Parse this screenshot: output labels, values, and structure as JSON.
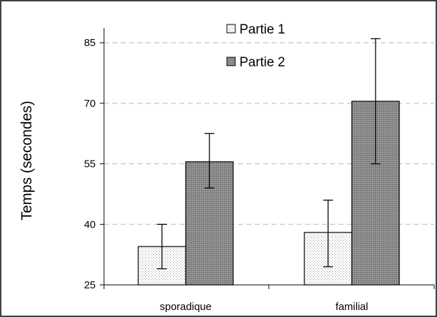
{
  "chart_data": {
    "type": "bar",
    "categories": [
      "sporadique",
      "familial"
    ],
    "series": [
      {
        "name": "Partie 1",
        "values": [
          34.5,
          38
        ],
        "err_low": [
          29,
          29.5
        ],
        "err_high": [
          40,
          46
        ],
        "pattern": "light-dotted"
      },
      {
        "name": "Partie 2",
        "values": [
          55.5,
          70.5
        ],
        "err_low": [
          49,
          55
        ],
        "err_high": [
          62.5,
          86
        ],
        "pattern": "dark-dotted"
      }
    ],
    "title": "",
    "xlabel": "",
    "ylabel": "Temps (secondes)",
    "ylim": [
      25,
      90
    ],
    "yticks": [
      25,
      40,
      55,
      70,
      85
    ],
    "grid": "horizontal dashed",
    "legend_position": "top-center"
  }
}
